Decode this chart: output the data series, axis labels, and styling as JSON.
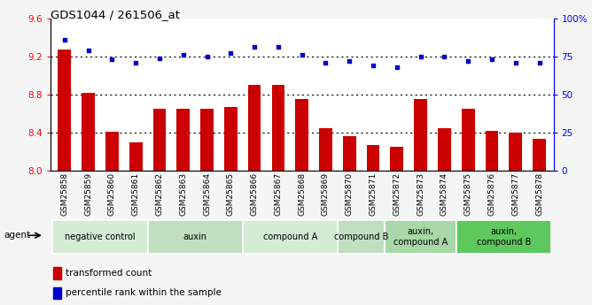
{
  "title": "GDS1044 / 261506_at",
  "samples": [
    "GSM25858",
    "GSM25859",
    "GSM25860",
    "GSM25861",
    "GSM25862",
    "GSM25863",
    "GSM25864",
    "GSM25865",
    "GSM25866",
    "GSM25867",
    "GSM25868",
    "GSM25869",
    "GSM25870",
    "GSM25871",
    "GSM25872",
    "GSM25873",
    "GSM25874",
    "GSM25875",
    "GSM25876",
    "GSM25877",
    "GSM25878"
  ],
  "bar_values": [
    9.27,
    8.82,
    8.41,
    8.3,
    8.65,
    8.65,
    8.65,
    8.67,
    8.9,
    8.9,
    8.75,
    8.45,
    8.36,
    8.27,
    8.25,
    8.75,
    8.45,
    8.65,
    8.42,
    8.4,
    8.34
  ],
  "dot_values": [
    86,
    79,
    73,
    71,
    74,
    76,
    75,
    77,
    81,
    81,
    76,
    71,
    72,
    69,
    68,
    75,
    75,
    72,
    73,
    71,
    71
  ],
  "ylim_left": [
    8.0,
    9.6
  ],
  "ylim_right": [
    0,
    100
  ],
  "yticks_left": [
    8.0,
    8.4,
    8.8,
    9.2,
    9.6
  ],
  "yticks_right": [
    0,
    25,
    50,
    75,
    100
  ],
  "bar_color": "#cc0000",
  "dot_color": "#0000cc",
  "groups": [
    {
      "label": "negative control",
      "start": 0,
      "end": 4,
      "color": "#d4ecd4"
    },
    {
      "label": "auxin",
      "start": 4,
      "end": 8,
      "color": "#c0dfc0"
    },
    {
      "label": "compound A",
      "start": 8,
      "end": 12,
      "color": "#d4ecd4"
    },
    {
      "label": "compound B",
      "start": 12,
      "end": 14,
      "color": "#c0dfc0"
    },
    {
      "label": "auxin,\ncompound A",
      "start": 14,
      "end": 17,
      "color": "#a8d8a8"
    },
    {
      "label": "auxin,\ncompound B",
      "start": 17,
      "end": 21,
      "color": "#5ec85e"
    }
  ],
  "agent_label": "agent",
  "legend_bar": "transformed count",
  "legend_dot": "percentile rank within the sample",
  "grid_yticks": [
    8.4,
    8.8,
    9.2
  ],
  "plot_bg": "#ffffff"
}
